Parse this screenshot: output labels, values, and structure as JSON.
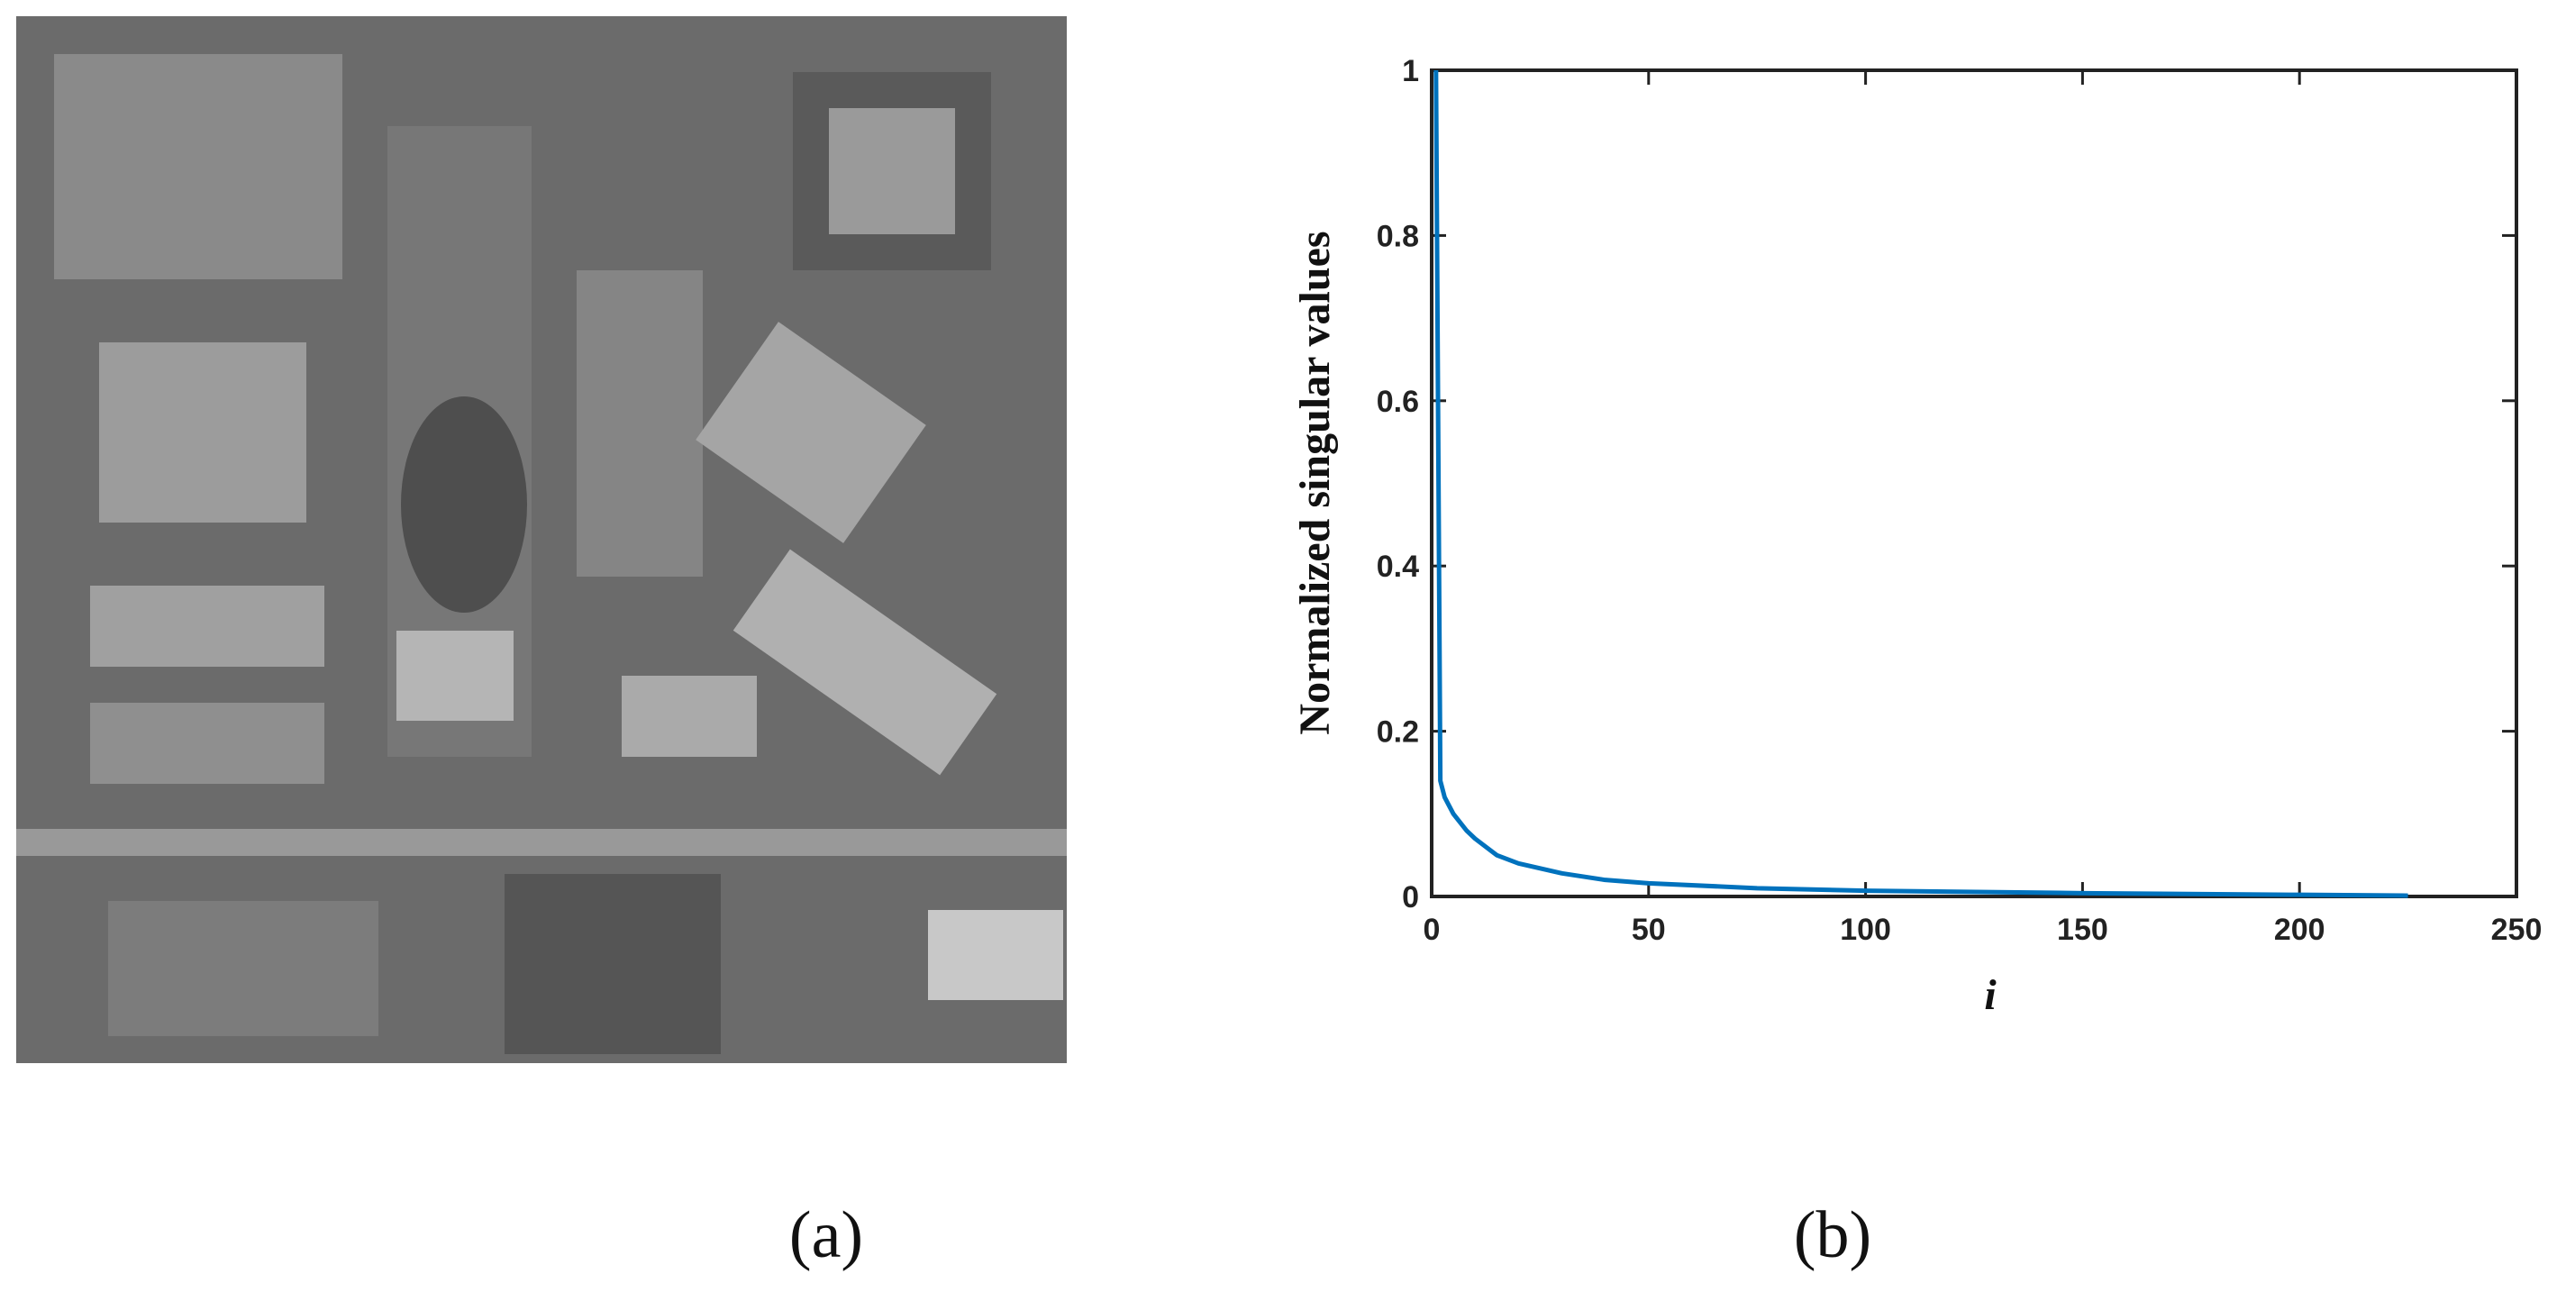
{
  "figure": {
    "captions": [
      "(a)",
      "(b)"
    ]
  },
  "chart_data": {
    "type": "line",
    "xlabel": "i",
    "ylabel": "Normalized singular values",
    "xlim": [
      0,
      250
    ],
    "ylim": [
      0,
      1
    ],
    "xticks": [
      0,
      50,
      100,
      150,
      200,
      250
    ],
    "yticks": [
      0,
      0.2,
      0.4,
      0.6,
      0.8,
      1
    ],
    "x": [
      1,
      2,
      3,
      5,
      8,
      10,
      15,
      20,
      30,
      40,
      50,
      75,
      100,
      150,
      200,
      225
    ],
    "series": [
      {
        "color": "#0072bd",
        "values": [
          1,
          0.14,
          0.12,
          0.1,
          0.08,
          0.07,
          0.05,
          0.04,
          0.028,
          0.02,
          0.016,
          0.01,
          0.007,
          0.004,
          0.002,
          0.001
        ]
      }
    ]
  }
}
